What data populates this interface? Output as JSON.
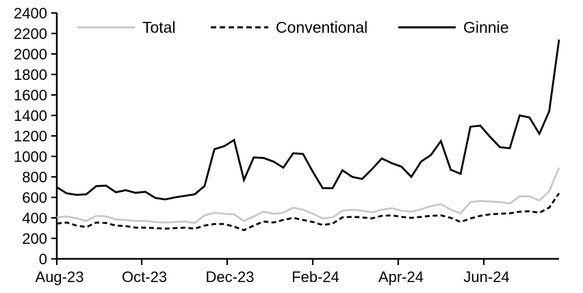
{
  "chart_data": {
    "type": "line",
    "title": "",
    "frequency": "weekly",
    "legend_position": "top",
    "grid": false,
    "background": "#ffffff",
    "axis_color": "#000000",
    "x_axis": {
      "tick_labels": [
        "Aug-23",
        "Oct-23",
        "Dec-23",
        "Feb-24",
        "Apr-24",
        "Jun-24"
      ],
      "tick_week_positions": [
        0,
        8.62,
        17.3,
        25.99,
        34.67,
        43.36
      ],
      "weeks_total": 51
    },
    "y_axis": {
      "min": 0,
      "max": 2400,
      "step": 200,
      "tick_labels": [
        "0",
        "200",
        "400",
        "600",
        "800",
        "1000",
        "1200",
        "1400",
        "1600",
        "1800",
        "2000",
        "2200",
        "2400"
      ]
    },
    "series": [
      {
        "name": "Total",
        "color": "#c8c8c8",
        "dash": "solid",
        "values": [
          405,
          415,
          395,
          370,
          420,
          415,
          385,
          380,
          370,
          370,
          360,
          355,
          360,
          365,
          350,
          425,
          450,
          440,
          435,
          370,
          415,
          460,
          440,
          450,
          500,
          480,
          440,
          395,
          405,
          470,
          480,
          470,
          455,
          480,
          495,
          470,
          460,
          485,
          515,
          535,
          480,
          445,
          555,
          565,
          560,
          555,
          540,
          610,
          610,
          570,
          660,
          890
        ]
      },
      {
        "name": "Conventional",
        "color": "#000000",
        "dash": "dashed",
        "values": [
          345,
          355,
          325,
          310,
          355,
          350,
          325,
          320,
          305,
          305,
          300,
          295,
          300,
          305,
          295,
          325,
          340,
          340,
          315,
          280,
          325,
          365,
          355,
          380,
          400,
          380,
          360,
          330,
          345,
          405,
          410,
          405,
          395,
          420,
          425,
          410,
          400,
          410,
          420,
          425,
          400,
          360,
          395,
          420,
          435,
          440,
          445,
          460,
          465,
          450,
          500,
          640
        ]
      },
      {
        "name": "Ginnie",
        "color": "#000000",
        "dash": "solid",
        "values": [
          700,
          640,
          625,
          630,
          710,
          715,
          650,
          670,
          645,
          655,
          595,
          580,
          600,
          615,
          630,
          710,
          1070,
          1100,
          1160,
          770,
          990,
          985,
          950,
          890,
          1030,
          1025,
          850,
          690,
          690,
          865,
          800,
          780,
          875,
          980,
          935,
          900,
          800,
          950,
          1015,
          1150,
          870,
          830,
          1290,
          1300,
          1190,
          1090,
          1080,
          1400,
          1380,
          1220,
          1440,
          2140
        ]
      }
    ]
  }
}
